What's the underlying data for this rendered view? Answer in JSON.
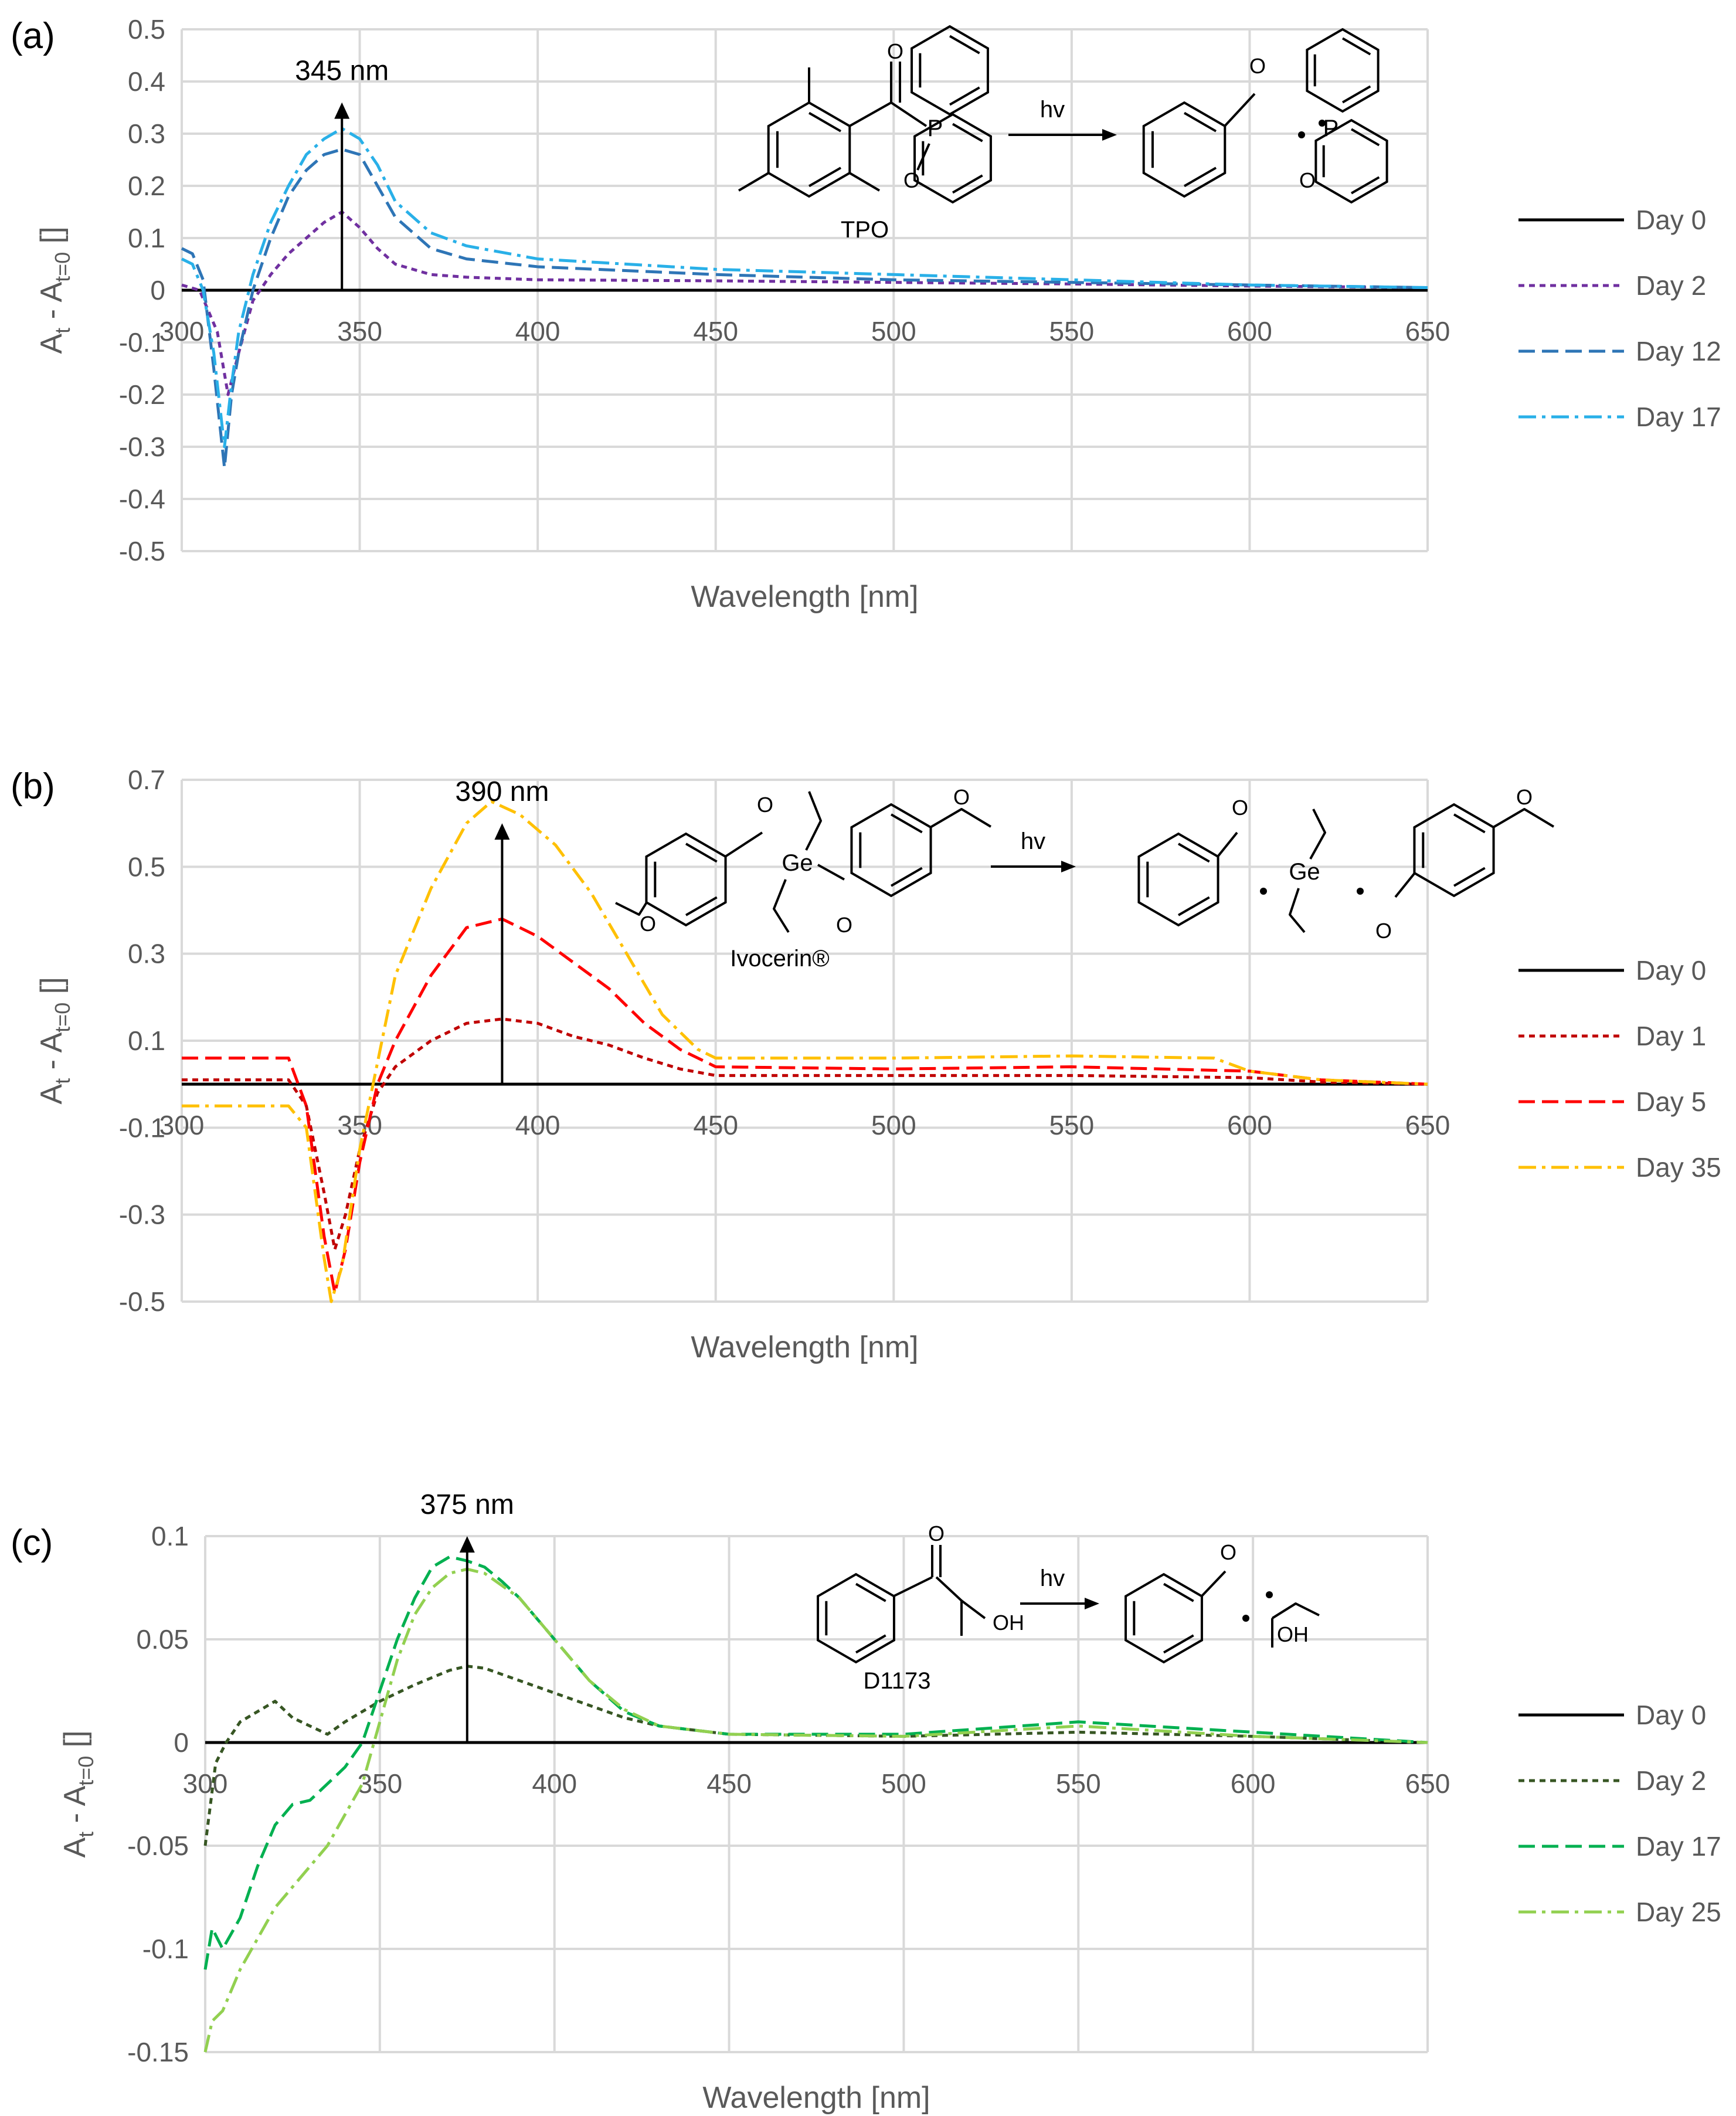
{
  "chart_data": [
    {
      "type": "line",
      "panel_label": "(a)",
      "xlabel": "Wavelength [nm]",
      "ylabel": "At - At=0 []",
      "ylabel_main": "A",
      "ylabel_sub1": "t",
      "ylabel_mid": " - A",
      "ylabel_sub2": "t=0",
      "ylabel_end": " []",
      "xlim": [
        300,
        650
      ],
      "ylim": [
        -0.5,
        0.5
      ],
      "xticks": [
        300,
        350,
        400,
        450,
        500,
        550,
        600,
        650
      ],
      "yticks": [
        -0.5,
        -0.4,
        -0.3,
        -0.2,
        -0.1,
        0,
        0.1,
        0.2,
        0.3,
        0.4,
        0.5
      ],
      "ytick_labels": [
        "-0.5",
        "-0.4",
        "-0.3",
        "-0.2",
        "-0.1",
        "0",
        "0.1",
        "0.2",
        "0.3",
        "0.4",
        "0.5"
      ],
      "grid": true,
      "annotation": {
        "text": "345 nm",
        "x": 345,
        "y_from": 0,
        "y_to": 0.36
      },
      "scheme": {
        "reactant": "TPO",
        "arrow_label": "hv",
        "reactant_type": "tpo"
      },
      "legend_position": "right",
      "series": [
        {
          "name": "Day 0",
          "color": "#000000",
          "dash": "solid",
          "x": [
            300,
            650
          ],
          "y": [
            0,
            0
          ]
        },
        {
          "name": "Day 2",
          "color": "#7030A0",
          "dash": "dot",
          "x": [
            300,
            305,
            310,
            313,
            316,
            320,
            325,
            330,
            335,
            340,
            345,
            350,
            355,
            360,
            370,
            380,
            400,
            450,
            500,
            550,
            600,
            650
          ],
          "y": [
            0.01,
            0.0,
            -0.08,
            -0.2,
            -0.12,
            -0.02,
            0.03,
            0.07,
            0.1,
            0.13,
            0.15,
            0.12,
            0.08,
            0.05,
            0.03,
            0.025,
            0.02,
            0.018,
            0.015,
            0.012,
            0.008,
            0.005
          ]
        },
        {
          "name": "Day 12",
          "color": "#2E75B6",
          "dash": "dash",
          "x": [
            300,
            303,
            306,
            309,
            312,
            314,
            316,
            320,
            325,
            330,
            335,
            340,
            345,
            350,
            355,
            360,
            370,
            380,
            400,
            450,
            500,
            550,
            600,
            650
          ],
          "y": [
            0.08,
            0.07,
            0.02,
            -0.15,
            -0.34,
            -0.2,
            -0.12,
            0.0,
            0.1,
            0.18,
            0.23,
            0.26,
            0.27,
            0.26,
            0.2,
            0.14,
            0.08,
            0.06,
            0.045,
            0.03,
            0.02,
            0.015,
            0.01,
            0.005
          ]
        },
        {
          "name": "Day 17",
          "color": "#29B0E8",
          "dash": "dashdot",
          "x": [
            300,
            303,
            306,
            309,
            312,
            314,
            316,
            320,
            325,
            330,
            335,
            340,
            345,
            350,
            355,
            360,
            370,
            380,
            400,
            450,
            500,
            550,
            600,
            650
          ],
          "y": [
            0.06,
            0.05,
            0.0,
            -0.12,
            -0.3,
            -0.18,
            -0.08,
            0.03,
            0.13,
            0.2,
            0.26,
            0.29,
            0.31,
            0.29,
            0.24,
            0.17,
            0.11,
            0.085,
            0.06,
            0.04,
            0.03,
            0.02,
            0.01,
            0.005
          ]
        }
      ]
    },
    {
      "type": "line",
      "panel_label": "(b)",
      "xlabel": "Wavelength [nm]",
      "ylabel": "At - At=0 []",
      "ylabel_main": "A",
      "ylabel_sub1": "t",
      "ylabel_mid": " - A",
      "ylabel_sub2": "t=0",
      "ylabel_end": " []",
      "xlim": [
        300,
        650
      ],
      "ylim": [
        -0.5,
        0.7
      ],
      "xticks": [
        300,
        350,
        400,
        450,
        500,
        550,
        600,
        650
      ],
      "yticks": [
        -0.5,
        -0.3,
        -0.1,
        0.1,
        0.3,
        0.5,
        0.7
      ],
      "ytick_labels": [
        "-0.5",
        "-0.3",
        "-0.1",
        "0.1",
        "0.3",
        "0.5",
        "0.7"
      ],
      "grid": true,
      "annotation": {
        "text": "390 nm",
        "x": 390,
        "y_from": 0,
        "y_to": 0.6
      },
      "scheme": {
        "reactant": "Ivocerin®",
        "arrow_label": "hv",
        "reactant_type": "ivocerin"
      },
      "legend_position": "right",
      "series": [
        {
          "name": "Day 0",
          "color": "#000000",
          "dash": "solid",
          "x": [
            300,
            650
          ],
          "y": [
            0,
            0
          ]
        },
        {
          "name": "Day 1",
          "color": "#C00000",
          "dash": "dot",
          "x": [
            300,
            330,
            335,
            340,
            343,
            346,
            350,
            355,
            360,
            370,
            380,
            390,
            400,
            410,
            420,
            430,
            440,
            450,
            500,
            550,
            600,
            620,
            650
          ],
          "y": [
            0.01,
            0.01,
            -0.05,
            -0.25,
            -0.38,
            -0.3,
            -0.15,
            -0.02,
            0.04,
            0.1,
            0.14,
            0.15,
            0.14,
            0.11,
            0.09,
            0.06,
            0.035,
            0.02,
            0.02,
            0.02,
            0.015,
            0.005,
            0.0
          ]
        },
        {
          "name": "Day 5",
          "color": "#FF0000",
          "dash": "dash",
          "x": [
            300,
            330,
            335,
            340,
            343,
            346,
            350,
            355,
            360,
            370,
            380,
            390,
            400,
            410,
            420,
            430,
            440,
            450,
            500,
            550,
            600,
            620,
            650
          ],
          "y": [
            0.06,
            0.06,
            -0.05,
            -0.35,
            -0.48,
            -0.38,
            -0.18,
            0.0,
            0.1,
            0.25,
            0.36,
            0.38,
            0.34,
            0.28,
            0.22,
            0.14,
            0.08,
            0.04,
            0.035,
            0.04,
            0.03,
            0.01,
            0.0
          ]
        },
        {
          "name": "Day 35",
          "color": "#FFC000",
          "dash": "dashdot",
          "x": [
            300,
            330,
            335,
            340,
            342,
            345,
            350,
            355,
            360,
            370,
            380,
            387,
            395,
            405,
            415,
            425,
            435,
            445,
            450,
            500,
            550,
            590,
            600,
            620,
            650
          ],
          "y": [
            -0.05,
            -0.05,
            -0.1,
            -0.4,
            -0.5,
            -0.42,
            -0.15,
            0.05,
            0.25,
            0.45,
            0.6,
            0.65,
            0.62,
            0.55,
            0.44,
            0.3,
            0.16,
            0.08,
            0.06,
            0.06,
            0.065,
            0.06,
            0.03,
            0.01,
            0.0
          ]
        }
      ]
    },
    {
      "type": "line",
      "panel_label": "(c)",
      "xlabel": "Wavelength [nm]",
      "ylabel": "At - At=0 []",
      "ylabel_main": "A",
      "ylabel_sub1": "t",
      "ylabel_mid": " - A",
      "ylabel_sub2": "t=0",
      "ylabel_end": " []",
      "xlim": [
        300,
        650
      ],
      "ylim": [
        -0.15,
        0.1
      ],
      "xticks": [
        300,
        350,
        400,
        450,
        500,
        550,
        600,
        650
      ],
      "yticks": [
        -0.15,
        -0.1,
        -0.05,
        0,
        0.05,
        0.1
      ],
      "ytick_labels": [
        "-0.15",
        "-0.1",
        "-0.05",
        "0",
        "0.05",
        "0.1"
      ],
      "grid": true,
      "annotation": {
        "text": "375 nm",
        "x": 375,
        "y_from": 0,
        "y_to": 0.1
      },
      "scheme": {
        "reactant": "D1173",
        "arrow_label": "hv",
        "reactant_type": "d1173"
      },
      "legend_position": "right",
      "series": [
        {
          "name": "Day 0",
          "color": "#000000",
          "dash": "solid",
          "x": [
            300,
            650
          ],
          "y": [
            0,
            0
          ]
        },
        {
          "name": "Day 2",
          "color": "#375623",
          "dash": "dot",
          "x": [
            300,
            303,
            306,
            310,
            315,
            320,
            325,
            330,
            335,
            340,
            345,
            350,
            360,
            370,
            375,
            380,
            390,
            400,
            410,
            420,
            430,
            450,
            500,
            550,
            600,
            650
          ],
          "y": [
            -0.05,
            -0.01,
            0.0,
            0.01,
            0.015,
            0.02,
            0.012,
            0.008,
            0.004,
            0.01,
            0.015,
            0.02,
            0.028,
            0.035,
            0.037,
            0.036,
            0.03,
            0.024,
            0.018,
            0.012,
            0.008,
            0.004,
            0.003,
            0.005,
            0.003,
            0.0
          ]
        },
        {
          "name": "Day 17",
          "color": "#00B050",
          "dash": "dash",
          "x": [
            300,
            302,
            305,
            310,
            315,
            320,
            325,
            330,
            335,
            340,
            345,
            350,
            355,
            360,
            365,
            370,
            375,
            380,
            385,
            390,
            400,
            410,
            420,
            430,
            450,
            500,
            550,
            600,
            650
          ],
          "y": [
            -0.11,
            -0.09,
            -0.1,
            -0.085,
            -0.06,
            -0.04,
            -0.03,
            -0.028,
            -0.02,
            -0.012,
            0.0,
            0.025,
            0.05,
            0.07,
            0.085,
            0.09,
            0.088,
            0.085,
            0.078,
            0.07,
            0.05,
            0.03,
            0.015,
            0.008,
            0.004,
            0.004,
            0.01,
            0.005,
            0.0
          ]
        },
        {
          "name": "Day 25",
          "color": "#92D050",
          "dash": "dashdot",
          "x": [
            300,
            302,
            305,
            310,
            315,
            320,
            325,
            330,
            335,
            340,
            345,
            350,
            355,
            360,
            365,
            370,
            375,
            380,
            385,
            390,
            400,
            410,
            420,
            430,
            450,
            500,
            550,
            600,
            650
          ],
          "y": [
            -0.15,
            -0.135,
            -0.13,
            -0.11,
            -0.095,
            -0.08,
            -0.07,
            -0.06,
            -0.05,
            -0.035,
            -0.02,
            0.01,
            0.04,
            0.062,
            0.075,
            0.082,
            0.084,
            0.082,
            0.076,
            0.07,
            0.05,
            0.03,
            0.016,
            0.008,
            0.004,
            0.003,
            0.008,
            0.003,
            0.0
          ]
        }
      ]
    }
  ]
}
